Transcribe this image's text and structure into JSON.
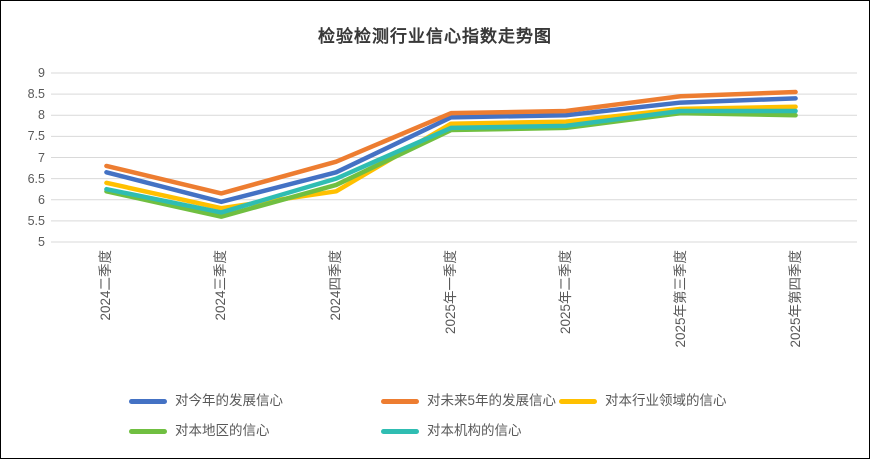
{
  "chart_data": {
    "type": "line",
    "title": "检验检测行业信心指数走势图",
    "categories": [
      "2024二季度",
      "2024三季度",
      "2024四季度",
      "2025年一季度",
      "2025年二季度",
      "2025年第三季度",
      "2025年第四季度"
    ],
    "series": [
      {
        "name": "对今年的发展信心",
        "color": "#4472C4",
        "values": [
          6.65,
          5.95,
          6.65,
          7.95,
          8.0,
          8.3,
          8.4
        ]
      },
      {
        "name": "对未来5年的发展信心",
        "color": "#ED7D31",
        "values": [
          6.8,
          6.15,
          6.9,
          8.05,
          8.1,
          8.45,
          8.55
        ]
      },
      {
        "name": "对本行业领域的信心",
        "color": "#FFC000",
        "values": [
          6.4,
          5.8,
          6.2,
          7.8,
          7.85,
          8.15,
          8.2
        ]
      },
      {
        "name": "对本地区的信心",
        "color": "#70BF41",
        "values": [
          6.2,
          5.6,
          6.35,
          7.65,
          7.7,
          8.05,
          8.0
        ]
      },
      {
        "name": "对本机构的信心",
        "color": "#2FBDB2",
        "values": [
          6.25,
          5.7,
          6.5,
          7.7,
          7.75,
          8.1,
          8.1
        ]
      }
    ],
    "y_axis": {
      "min": 5,
      "max": 9,
      "step": 0.5,
      "ticks": [
        "9",
        "8.5",
        "8",
        "7.5",
        "7",
        "6.5",
        "6",
        "5.5",
        "5"
      ]
    },
    "grid": true,
    "legend_position": "bottom",
    "legend_rows": [
      [
        0,
        1,
        2
      ],
      [
        3,
        4
      ]
    ]
  },
  "styles": {
    "gridline_color": "#D9D9D9",
    "tick_label_color": "#595959",
    "title_color": "#383838",
    "background": "#FFFFFF",
    "line_width": 4.5
  }
}
